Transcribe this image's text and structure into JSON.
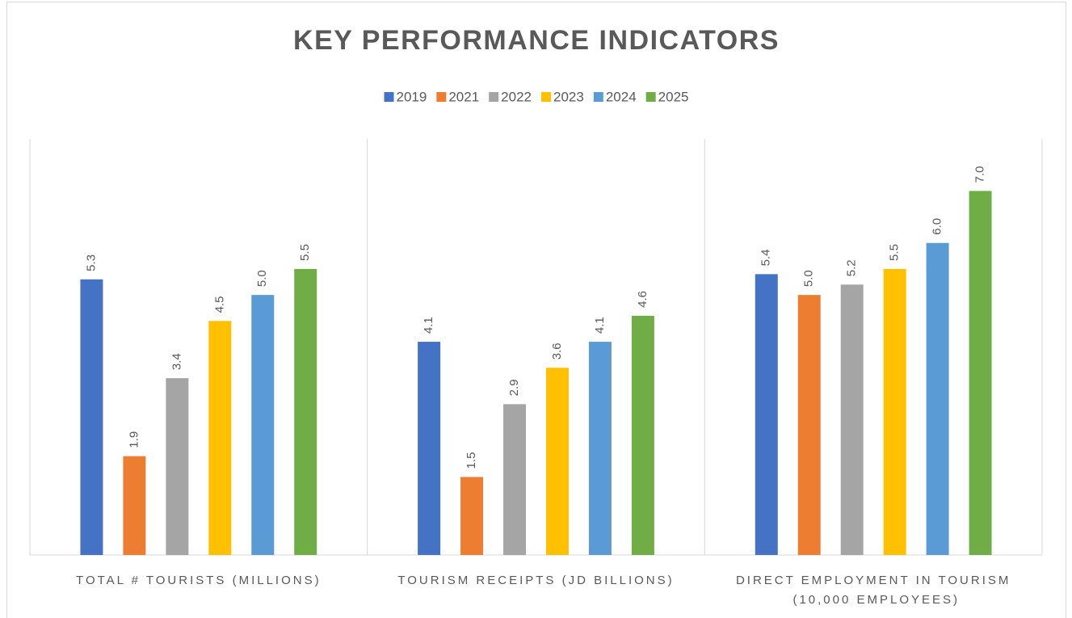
{
  "chart_data": {
    "type": "bar",
    "title": "KEY PERFORMANCE INDICATORS",
    "categories": [
      "TOTAL # TOURISTS (MILLIONS)",
      "TOURISM RECEIPTS (JD BILLIONS)",
      "DIRECT EMPLOYMENT IN TOURISM (10,000 EMPLOYEES)"
    ],
    "series": [
      {
        "name": "2019",
        "color": "#4472c4",
        "values": [
          5.3,
          4.1,
          5.4
        ],
        "value_labels": [
          "5.3",
          "4.1",
          "5.4"
        ]
      },
      {
        "name": "2021",
        "color": "#ed7d31",
        "values": [
          1.9,
          1.5,
          5
        ],
        "value_labels": [
          "1.9",
          "1.5",
          "5.0"
        ]
      },
      {
        "name": "2022",
        "color": "#a5a5a5",
        "values": [
          3.4,
          2.9,
          5.2
        ],
        "value_labels": [
          "3.4",
          "2.9",
          "5.2"
        ]
      },
      {
        "name": "2023",
        "color": "#ffc000",
        "values": [
          4.5,
          3.6,
          5.5
        ],
        "value_labels": [
          "4.5",
          "3.6",
          "5.5"
        ]
      },
      {
        "name": "2024",
        "color": "#5b9bd5",
        "values": [
          5,
          4.1,
          6
        ],
        "value_labels": [
          "5.0",
          "4.1",
          "6.0"
        ]
      },
      {
        "name": "2025",
        "color": "#70ad47",
        "values": [
          5.5,
          4.6,
          7
        ],
        "value_labels": [
          "5.5",
          "4.6",
          "7.0"
        ]
      }
    ],
    "ylim": [
      0,
      8
    ],
    "legend": "top"
  }
}
